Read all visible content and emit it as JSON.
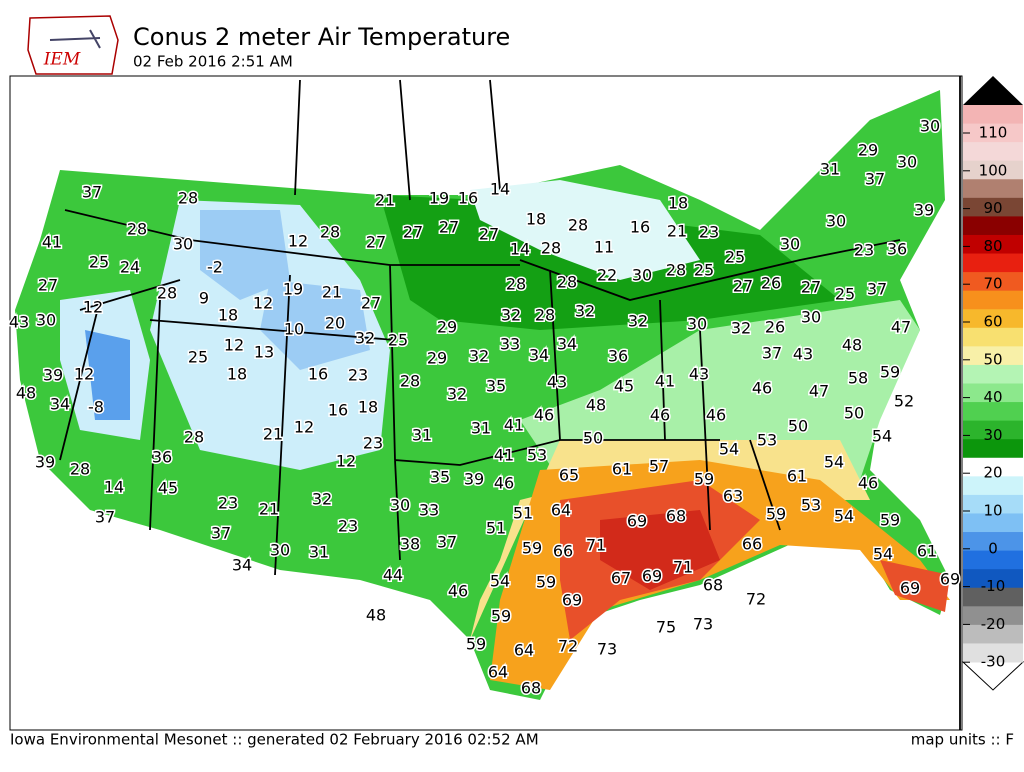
{
  "header": {
    "logo": "IEM",
    "title": "Conus 2 meter Air Temperature",
    "subtitle": "02 Feb 2016 2:51 AM"
  },
  "colorbar": {
    "ticks": [
      110,
      100,
      90,
      80,
      70,
      60,
      50,
      40,
      30,
      20,
      10,
      0,
      -10,
      -20,
      -30
    ]
  },
  "stations": [
    30,
    29,
    30,
    31,
    37,
    14,
    37,
    28,
    21,
    19,
    16,
    18,
    39,
    18,
    28,
    16,
    30,
    41,
    28,
    30,
    12,
    28,
    27,
    27,
    27,
    27,
    14,
    28,
    11,
    21,
    23,
    23,
    36,
    30,
    25,
    24,
    -2,
    25,
    27,
    28,
    9,
    19,
    21,
    27,
    28,
    28,
    22,
    30,
    28,
    25,
    27,
    26,
    27,
    25,
    37,
    43,
    30,
    12,
    18,
    12,
    10,
    20,
    32,
    25,
    29,
    32,
    28,
    32,
    32,
    30,
    32,
    26,
    30,
    47,
    12,
    13,
    25,
    29,
    32,
    33,
    34,
    34,
    36,
    37,
    43,
    48,
    39,
    12,
    18,
    16,
    23,
    28,
    35,
    43,
    45,
    41,
    43,
    46,
    47,
    58,
    59,
    48,
    34,
    -8,
    16,
    18,
    32,
    48,
    46,
    46,
    50,
    52,
    28,
    21,
    12,
    23,
    31,
    31,
    41,
    46,
    50,
    50,
    54,
    39,
    28,
    36,
    12,
    41,
    53,
    65,
    61,
    57,
    54,
    53,
    54,
    14,
    45,
    35,
    39,
    46,
    59,
    63,
    61,
    46,
    37,
    23,
    21,
    32,
    30,
    33,
    51,
    51,
    64,
    69,
    68,
    59,
    53,
    54,
    59,
    37,
    23,
    37,
    38,
    59,
    66,
    71,
    66,
    54,
    61,
    30,
    31,
    34,
    44,
    54,
    59,
    67,
    69,
    71,
    68,
    72,
    69,
    69,
    46,
    69,
    59,
    75,
    73,
    48,
    59,
    64,
    72,
    73,
    64,
    68
  ],
  "footer": {
    "credit": "Iowa Environmental Mesonet :: generated 02 February 2016 02:52 AM",
    "units": "map units :: F"
  }
}
